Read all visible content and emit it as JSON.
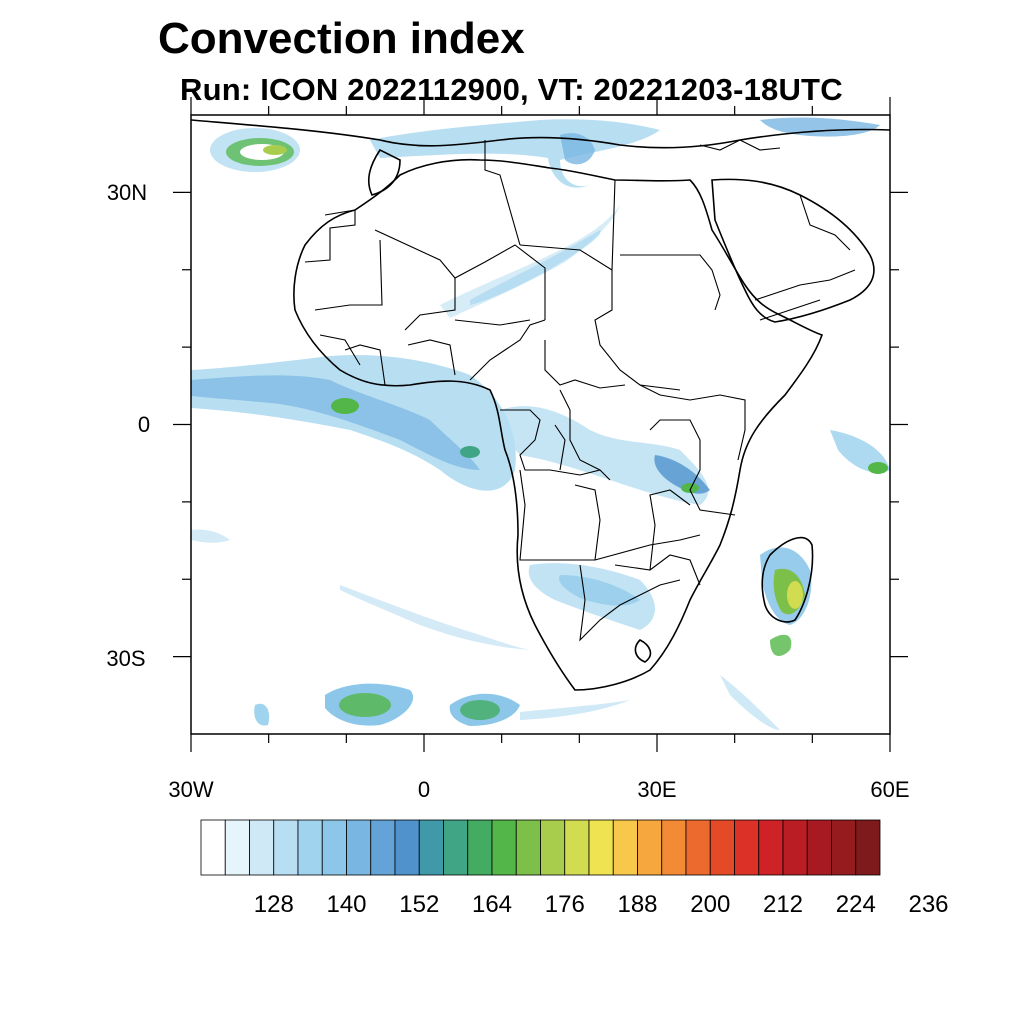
{
  "title": "Convection index",
  "subtitle": "Run: ICON 2022112900,  VT: 20221203-18UTC",
  "axes": {
    "lat_labels": [
      "30N",
      "0",
      "30S"
    ],
    "lon_labels": [
      "30W",
      "0",
      "30E",
      "60E"
    ]
  },
  "map_data": {
    "type": "filled-contour-map",
    "variable": "Convection index",
    "lon_range": [
      -30,
      60
    ],
    "lat_range": [
      -40,
      40
    ],
    "lat_ticks": [
      30,
      0,
      -30
    ],
    "lon_ticks": [
      -30,
      0,
      30,
      60
    ]
  },
  "colorbar": {
    "colors": [
      "#ffffff",
      "#e6f4fb",
      "#cfe9f6",
      "#b7def2",
      "#a0d3ee",
      "#8cc7ea",
      "#79b6e2",
      "#64a3d8",
      "#4f92cc",
      "#4099a8",
      "#3fa585",
      "#44ac62",
      "#52b748",
      "#7cc04a",
      "#a8cd4c",
      "#d2dc50",
      "#f0e352",
      "#f7c84a",
      "#f6a83e",
      "#f28a36",
      "#ec6a2d",
      "#e44a28",
      "#dc3127",
      "#ce2226",
      "#bb1d25",
      "#a81a22",
      "#951b1f",
      "#7f1a1c"
    ],
    "tick_labels": [
      "128",
      "140",
      "152",
      "164",
      "176",
      "188",
      "200",
      "212",
      "224",
      "236"
    ]
  }
}
